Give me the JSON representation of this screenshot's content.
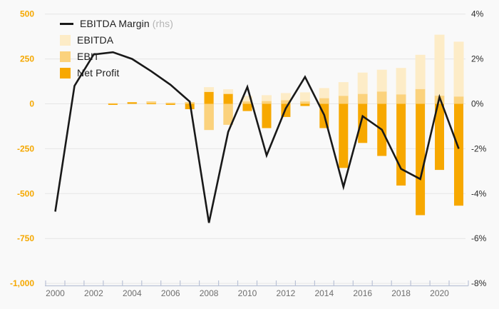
{
  "chart_data": {
    "type": "combo-bar-line",
    "x": [
      2000,
      2001,
      2002,
      2003,
      2004,
      2005,
      2006,
      2007,
      2008,
      2009,
      2010,
      2011,
      2012,
      2013,
      2014,
      2015,
      2016,
      2017,
      2018,
      2019,
      2020,
      2021
    ],
    "series": [
      {
        "name": "EBITDA Margin",
        "suffix": "(rhs)",
        "type": "line",
        "axis": "right",
        "unit": "%",
        "color": "#191919",
        "values": [
          -4.8,
          0.8,
          2.2,
          2.3,
          2.0,
          1.45,
          0.85,
          0.1,
          -5.3,
          -1.25,
          0.75,
          -2.3,
          -0.2,
          1.2,
          -0.5,
          -3.7,
          -0.55,
          -1.15,
          -2.9,
          -3.35,
          0.3,
          -2.0
        ]
      },
      {
        "name": "EBITDA",
        "type": "bar",
        "axis": "left",
        "color": "#fdecc7",
        "values": [
          null,
          null,
          null,
          3,
          10,
          14,
          7,
          9,
          93,
          81,
          44,
          48,
          60,
          64,
          88,
          121,
          174,
          190,
          200,
          273,
          385,
          346
        ]
      },
      {
        "name": "EBIT",
        "type": "bar",
        "axis": "left",
        "color": "#fbd27d",
        "values": [
          null,
          null,
          null,
          3,
          10,
          13,
          6,
          9,
          -146,
          -117,
          13,
          15,
          20,
          13,
          31,
          44,
          55,
          68,
          52,
          82,
          45,
          40
        ]
      },
      {
        "name": "Net Profit",
        "type": "bar",
        "axis": "left",
        "color": "#f7a800",
        "values": [
          null,
          null,
          null,
          -6,
          8,
          2,
          -6,
          -30,
          66,
          55,
          -40,
          -135,
          -73,
          -12,
          -135,
          -357,
          -218,
          -290,
          -455,
          -620,
          -368,
          -567
        ]
      }
    ],
    "left_axis": {
      "min": -1000,
      "max": 500,
      "tick_step": 250,
      "tick_labels": [
        "500",
        "250",
        "0",
        "-250",
        "-500",
        "-750",
        "-1,000"
      ],
      "label_color": "#f5a800"
    },
    "right_axis": {
      "min": -8,
      "max": 4,
      "tick_step": 2,
      "tick_labels": [
        "4%",
        "2%",
        "0%",
        "-2%",
        "-4%",
        "-6%",
        "-8%"
      ],
      "label_color": "#2b2b2b"
    },
    "x_axis": {
      "tick_labels": [
        "2000",
        "2002",
        "2004",
        "2006",
        "2008",
        "2010",
        "2012",
        "2014",
        "2016",
        "2018",
        "2020"
      ],
      "label_years": [
        2000,
        2002,
        2004,
        2006,
        2008,
        2010,
        2012,
        2014,
        2016,
        2018,
        2020
      ],
      "line_color": "#bac2d6",
      "label_color": "#6e6e6e"
    },
    "grid": {
      "show": true,
      "color": "#e6e6e6"
    },
    "legend_position": "top-left",
    "background": "#f9f9f9"
  },
  "legend": {
    "items": [
      {
        "label": "EBITDA Margin",
        "suffix": " (rhs)",
        "swatch": "line",
        "color": "#191919"
      },
      {
        "label": "EBITDA",
        "swatch": "square",
        "color": "#fdecc7"
      },
      {
        "label": "EBIT",
        "swatch": "square",
        "color": "#fbd27d"
      },
      {
        "label": "Net Profit",
        "swatch": "square",
        "color": "#f7a800"
      }
    ]
  }
}
